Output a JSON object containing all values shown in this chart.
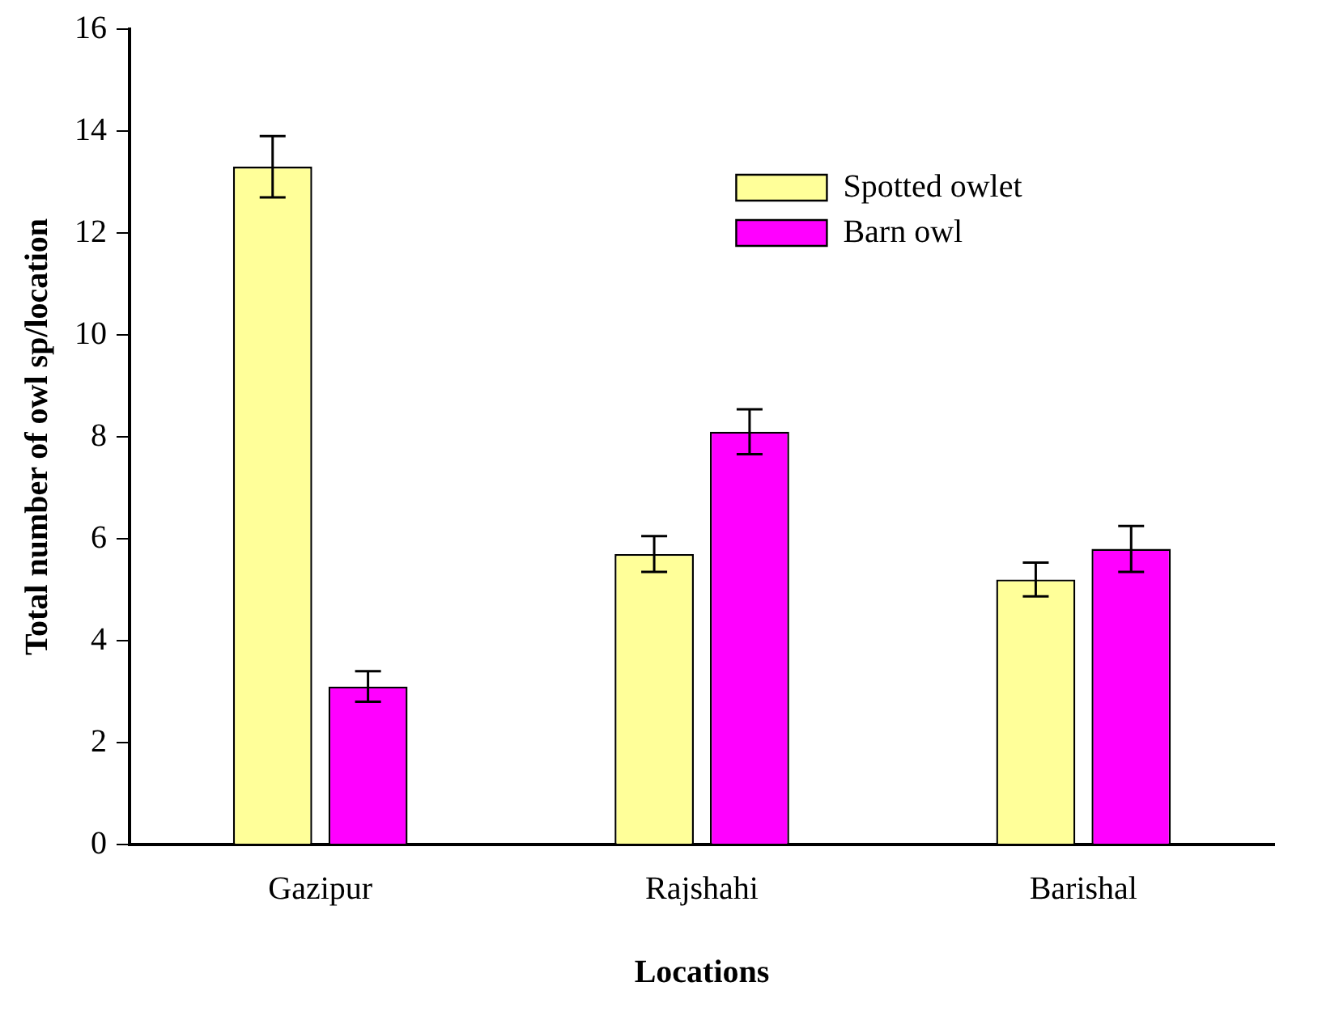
{
  "chart_data": {
    "type": "bar",
    "xlabel": "Locations",
    "ylabel": "Total number of owl sp/location",
    "categories": [
      "Gazipur",
      "Rajshahi",
      "Barishal"
    ],
    "series": [
      {
        "name": "Spotted owlet",
        "color": "#ffff99",
        "values": [
          13.3,
          5.7,
          5.2
        ],
        "errors": [
          0.6,
          0.35,
          0.33
        ]
      },
      {
        "name": "Barn owl",
        "color": "#ff00ff",
        "values": [
          3.1,
          8.1,
          5.8
        ],
        "errors": [
          0.3,
          0.44,
          0.45
        ]
      }
    ],
    "ylim": [
      0,
      16
    ],
    "yticks": [
      0,
      2,
      4,
      6,
      8,
      10,
      12,
      14,
      16
    ],
    "grid": false,
    "legend": "top right"
  }
}
